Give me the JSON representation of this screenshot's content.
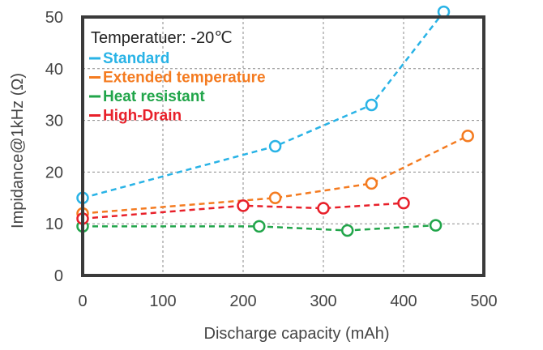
{
  "chart_data": {
    "type": "line",
    "annotation": "Temperatuer: -20℃",
    "xlabel": "Discharge capacity (mAh)",
    "ylabel": "Impidance@1kHz (Ω)",
    "xlim": [
      0,
      500
    ],
    "ylim": [
      0,
      50
    ],
    "x_ticks": [
      0,
      100,
      200,
      300,
      400,
      500
    ],
    "y_ticks": [
      0,
      10,
      20,
      30,
      40,
      50
    ],
    "grid": "dashed",
    "legend_position": "top-left",
    "series": [
      {
        "name": "Standard",
        "color": "#29b3e6",
        "points": [
          [
            0,
            15
          ],
          [
            240,
            25
          ],
          [
            360,
            33
          ],
          [
            450,
            51
          ]
        ]
      },
      {
        "name": "Extended temperature",
        "color": "#f47b20",
        "points": [
          [
            0,
            12
          ],
          [
            240,
            15
          ],
          [
            360,
            17.8
          ],
          [
            480,
            27
          ]
        ]
      },
      {
        "name": "Heat resistant",
        "color": "#21a54a",
        "points": [
          [
            0,
            9.5
          ],
          [
            220,
            9.5
          ],
          [
            330,
            8.7
          ],
          [
            440,
            9.7
          ]
        ]
      },
      {
        "name": "High-Drain",
        "color": "#e8202a",
        "points": [
          [
            0,
            11
          ],
          [
            200,
            13.5
          ],
          [
            300,
            13
          ],
          [
            400,
            14
          ]
        ]
      }
    ]
  }
}
